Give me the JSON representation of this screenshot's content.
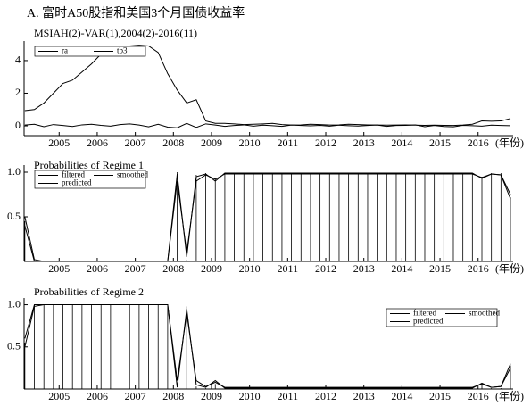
{
  "chart_data": [
    {
      "type": "line",
      "title": "A. 富时A50股指和美国3个月国债收益率",
      "subtitle": "MSIAH(2)-VAR(1),2004(2)-2016(11)",
      "xlabel": "(年份)",
      "legend": "upper left",
      "x": [
        2004.1,
        2004.35,
        2004.6,
        2004.85,
        2005.1,
        2005.35,
        2005.6,
        2005.85,
        2006.1,
        2006.35,
        2006.6,
        2006.85,
        2007.1,
        2007.35,
        2007.6,
        2007.85,
        2008.1,
        2008.35,
        2008.6,
        2008.85,
        2009.1,
        2009.35,
        2009.6,
        2009.85,
        2010.1,
        2010.35,
        2010.6,
        2010.85,
        2011.1,
        2011.35,
        2011.6,
        2011.85,
        2012.1,
        2012.35,
        2012.6,
        2012.85,
        2013.1,
        2013.35,
        2013.6,
        2013.85,
        2014.1,
        2014.35,
        2014.6,
        2014.85,
        2015.1,
        2015.35,
        2015.6,
        2015.85,
        2016.1,
        2016.35,
        2016.6,
        2016.85
      ],
      "series": [
        {
          "name": "ra",
          "color": "#000000",
          "values": [
            0.05,
            0.1,
            -0.05,
            0.08,
            0.02,
            -0.04,
            0.06,
            0.1,
            0.03,
            -0.02,
            0.08,
            0.12,
            0.05,
            -0.06,
            0.1,
            -0.08,
            -0.12,
            0.15,
            -0.1,
            0.12,
            0.05,
            -0.03,
            0.02,
            0.06,
            -0.02,
            0.04,
            0.01,
            -0.03,
            0.05,
            0.02,
            0.0,
            0.03,
            -0.02,
            0.04,
            0.01,
            -0.01,
            0.02,
            0.05,
            -0.03,
            0.02,
            0.03,
            0.06,
            -0.05,
            0.02,
            -0.04,
            -0.06,
            0.03,
            0.01,
            -0.02,
            0.04,
            0.02,
            0.01
          ]
        },
        {
          "name": "tb3",
          "color": "#000000",
          "values": [
            0.93,
            1.0,
            1.4,
            2.0,
            2.6,
            2.8,
            3.3,
            3.8,
            4.4,
            4.7,
            4.9,
            4.9,
            4.95,
            4.9,
            4.5,
            3.2,
            2.2,
            1.4,
            1.6,
            0.3,
            0.15,
            0.15,
            0.12,
            0.08,
            0.1,
            0.12,
            0.15,
            0.08,
            0.05,
            0.06,
            0.1,
            0.08,
            0.05,
            0.06,
            0.1,
            0.08,
            0.06,
            0.05,
            0.04,
            0.05,
            0.06,
            0.04,
            0.03,
            0.04,
            0.03,
            0.02,
            0.05,
            0.1,
            0.3,
            0.28,
            0.3,
            0.45
          ]
        }
      ],
      "xlim": [
        2004.08,
        2016.92
      ],
      "xticks": [
        2005,
        2006,
        2007,
        2008,
        2009,
        2010,
        2011,
        2012,
        2013,
        2014,
        2015,
        2016
      ],
      "ylim": [
        -0.6,
        5.2
      ],
      "yticks": [
        0,
        2,
        4
      ]
    },
    {
      "type": "probability",
      "title": "Probabilities of Regime 1",
      "xlabel": "(年份)",
      "legend": "upper left",
      "x": [
        2004.1,
        2004.35,
        2004.6,
        2004.85,
        2005.1,
        2005.35,
        2005.6,
        2005.85,
        2006.1,
        2006.35,
        2006.6,
        2006.85,
        2007.1,
        2007.35,
        2007.6,
        2007.85,
        2008.1,
        2008.35,
        2008.6,
        2008.85,
        2009.1,
        2009.35,
        2009.6,
        2009.85,
        2010.1,
        2010.35,
        2010.6,
        2010.85,
        2011.1,
        2011.35,
        2011.6,
        2011.85,
        2012.1,
        2012.35,
        2012.6,
        2012.85,
        2013.1,
        2013.35,
        2013.6,
        2013.85,
        2014.1,
        2014.35,
        2014.6,
        2014.85,
        2015.1,
        2015.35,
        2015.6,
        2015.85,
        2016.1,
        2016.35,
        2016.6,
        2016.85
      ],
      "series": [
        {
          "name": "filtered",
          "color": "#000000",
          "mark": "line",
          "values": [
            0.4,
            0,
            0,
            0,
            0,
            0,
            0,
            0,
            0,
            0,
            0,
            0,
            0,
            0,
            0,
            0,
            0.98,
            0.05,
            0.95,
            0.98,
            0.9,
            0.99,
            0.99,
            0.99,
            0.99,
            0.99,
            0.99,
            0.99,
            0.99,
            0.99,
            0.99,
            0.99,
            0.99,
            0.99,
            0.99,
            0.99,
            0.99,
            0.99,
            0.99,
            0.99,
            0.99,
            0.99,
            0.99,
            0.99,
            0.99,
            0.99,
            0.99,
            0.99,
            0.93,
            0.98,
            0.97,
            0.7
          ]
        },
        {
          "name": "smoothed",
          "color": "#000000",
          "mark": "bar",
          "values": [
            0.45,
            0,
            0,
            0,
            0,
            0,
            0,
            0,
            0,
            0,
            0,
            0,
            0,
            0,
            0,
            0,
            1.0,
            0.02,
            0.97,
            0.99,
            0.94,
            0.99,
            0.99,
            0.99,
            0.99,
            0.99,
            0.99,
            0.99,
            0.99,
            0.99,
            0.99,
            0.99,
            0.99,
            0.99,
            0.99,
            0.99,
            0.99,
            0.99,
            0.99,
            0.99,
            0.99,
            0.99,
            0.99,
            0.99,
            0.99,
            0.99,
            0.99,
            0.99,
            0.95,
            0.99,
            0.99,
            0.72
          ]
        },
        {
          "name": "predicted",
          "color": "#000000",
          "mark": "line",
          "values": [
            0.5,
            0.02,
            0,
            0,
            0,
            0,
            0,
            0,
            0,
            0,
            0,
            0,
            0,
            0,
            0,
            0,
            0.9,
            0.1,
            0.9,
            0.97,
            0.92,
            0.98,
            0.98,
            0.98,
            0.98,
            0.98,
            0.98,
            0.98,
            0.98,
            0.98,
            0.98,
            0.98,
            0.98,
            0.98,
            0.98,
            0.98,
            0.98,
            0.98,
            0.98,
            0.98,
            0.98,
            0.98,
            0.98,
            0.98,
            0.98,
            0.98,
            0.98,
            0.98,
            0.94,
            0.98,
            0.97,
            0.75
          ]
        }
      ],
      "xlim": [
        2004.08,
        2016.92
      ],
      "xticks": [
        2005,
        2006,
        2007,
        2008,
        2009,
        2010,
        2011,
        2012,
        2013,
        2014,
        2015,
        2016
      ],
      "ylim": [
        0,
        1.08
      ],
      "yticks": [
        0.5,
        {
          "value": 1,
          "label": "1.0"
        }
      ]
    },
    {
      "type": "probability",
      "title": "Probabilities of Regime 2",
      "xlabel": "(年份)",
      "legend": "upper right",
      "x": [
        2004.1,
        2004.35,
        2004.6,
        2004.85,
        2005.1,
        2005.35,
        2005.6,
        2005.85,
        2006.1,
        2006.35,
        2006.6,
        2006.85,
        2007.1,
        2007.35,
        2007.6,
        2007.85,
        2008.1,
        2008.35,
        2008.6,
        2008.85,
        2009.1,
        2009.35,
        2009.6,
        2009.85,
        2010.1,
        2010.35,
        2010.6,
        2010.85,
        2011.1,
        2011.35,
        2011.6,
        2011.85,
        2012.1,
        2012.35,
        2012.6,
        2012.85,
        2013.1,
        2013.35,
        2013.6,
        2013.85,
        2014.1,
        2014.35,
        2014.6,
        2014.85,
        2015.1,
        2015.35,
        2015.6,
        2015.85,
        2016.1,
        2016.35,
        2016.6,
        2016.85
      ],
      "series": [
        {
          "name": "filtered",
          "color": "#000000",
          "mark": "line",
          "values": [
            0.6,
            1,
            1,
            1,
            1,
            1,
            1,
            1,
            1,
            1,
            1,
            1,
            1,
            1,
            1,
            1,
            0.02,
            0.95,
            0.05,
            0.02,
            0.1,
            0.01,
            0.01,
            0.01,
            0.01,
            0.01,
            0.01,
            0.01,
            0.01,
            0.01,
            0.01,
            0.01,
            0.01,
            0.01,
            0.01,
            0.01,
            0.01,
            0.01,
            0.01,
            0.01,
            0.01,
            0.01,
            0.01,
            0.01,
            0.01,
            0.01,
            0.01,
            0.01,
            0.07,
            0.02,
            0.03,
            0.3
          ]
        },
        {
          "name": "smoothed",
          "color": "#000000",
          "mark": "bar",
          "values": [
            0.55,
            1,
            1,
            1,
            1,
            1,
            1,
            1,
            1,
            1,
            1,
            1,
            1,
            1,
            1,
            1,
            0,
            0.98,
            0.03,
            0.01,
            0.06,
            0.01,
            0.01,
            0.01,
            0.01,
            0.01,
            0.01,
            0.01,
            0.01,
            0.01,
            0.01,
            0.01,
            0.01,
            0.01,
            0.01,
            0.01,
            0.01,
            0.01,
            0.01,
            0.01,
            0.01,
            0.01,
            0.01,
            0.01,
            0.01,
            0.01,
            0.01,
            0.01,
            0.05,
            0.01,
            0.01,
            0.28
          ]
        },
        {
          "name": "predicted",
          "color": "#000000",
          "mark": "line",
          "values": [
            0.5,
            0.98,
            1,
            1,
            1,
            1,
            1,
            1,
            1,
            1,
            1,
            1,
            1,
            1,
            1,
            1,
            0.1,
            0.9,
            0.1,
            0.03,
            0.08,
            0.02,
            0.02,
            0.02,
            0.02,
            0.02,
            0.02,
            0.02,
            0.02,
            0.02,
            0.02,
            0.02,
            0.02,
            0.02,
            0.02,
            0.02,
            0.02,
            0.02,
            0.02,
            0.02,
            0.02,
            0.02,
            0.02,
            0.02,
            0.02,
            0.02,
            0.02,
            0.02,
            0.06,
            0.02,
            0.03,
            0.25
          ]
        }
      ],
      "xlim": [
        2004.08,
        2016.92
      ],
      "xticks": [
        2005,
        2006,
        2007,
        2008,
        2009,
        2010,
        2011,
        2012,
        2013,
        2014,
        2015,
        2016
      ],
      "ylim": [
        0,
        1.08
      ],
      "yticks": [
        0.5,
        {
          "value": 1,
          "label": "1.0"
        }
      ]
    }
  ]
}
